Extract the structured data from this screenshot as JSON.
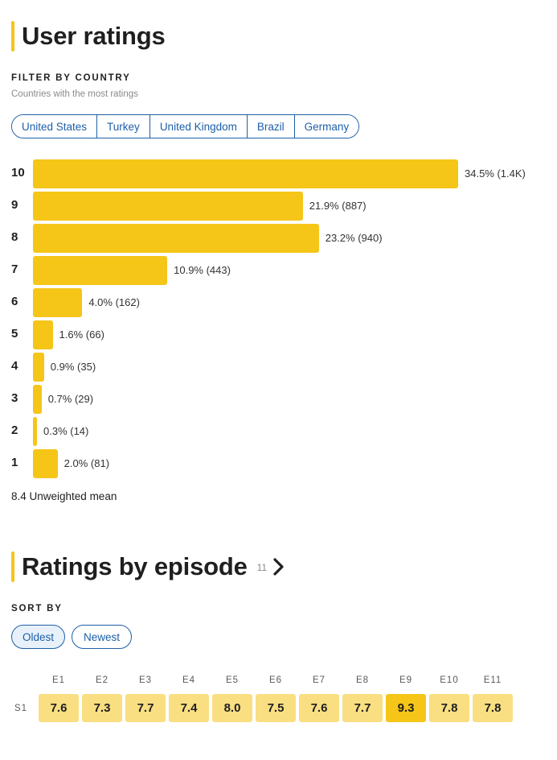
{
  "user_ratings": {
    "title": "User ratings",
    "filter_label": "FILTER BY COUNTRY",
    "filter_hint": "Countries with the most ratings",
    "countries": [
      "United States",
      "Turkey",
      "United Kingdom",
      "Brazil",
      "Germany"
    ],
    "mean_text": "8.4 Unweighted mean"
  },
  "chart_data": {
    "type": "bar",
    "orientation": "horizontal",
    "categories": [
      "10",
      "9",
      "8",
      "7",
      "6",
      "5",
      "4",
      "3",
      "2",
      "1"
    ],
    "values": [
      34.5,
      21.9,
      23.2,
      10.9,
      4.0,
      1.6,
      0.9,
      0.7,
      0.3,
      2.0
    ],
    "labels": [
      "34.5% (1.4K)",
      "21.9% (887)",
      "23.2% (940)",
      "10.9% (443)",
      "4.0% (162)",
      "1.6% (66)",
      "0.9% (35)",
      "0.7% (29)",
      "0.3% (14)",
      "2.0% (81)"
    ],
    "colors": {
      "bar": "#f5c518"
    }
  },
  "episodes": {
    "title": "Ratings by episode",
    "count": "11",
    "sort_label": "SORT BY",
    "sort_options": [
      "Oldest",
      "Newest"
    ],
    "season_label": "S1",
    "headers": [
      "E1",
      "E2",
      "E3",
      "E4",
      "E5",
      "E6",
      "E7",
      "E8",
      "E9",
      "E10",
      "E11"
    ],
    "ratings": [
      "7.6",
      "7.3",
      "7.7",
      "7.4",
      "8.0",
      "7.5",
      "7.6",
      "7.7",
      "9.3",
      "7.8",
      "7.8"
    ],
    "highlight_index": 8
  },
  "colors": {
    "accent": "#f5c518",
    "link": "#1d5fa8",
    "cell": "#f9df82"
  }
}
